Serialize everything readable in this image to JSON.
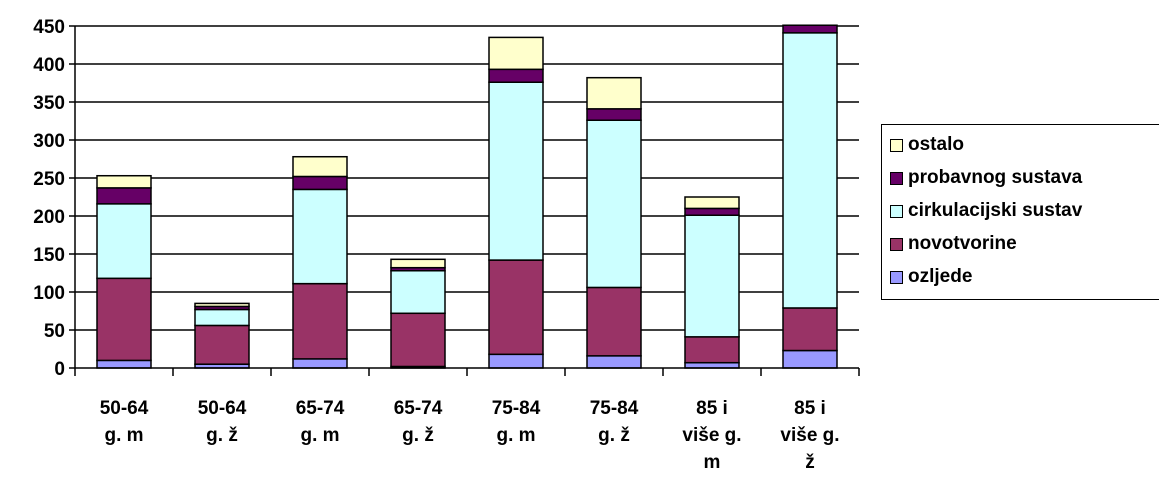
{
  "chart_data": {
    "type": "bar",
    "stacked": true,
    "categories": [
      "50-64 g. m",
      "50-64 g. ž",
      "65-74 g. m",
      "65-74 g. ž",
      "75-84 g. m",
      "75-84 g. ž",
      "85 i više g. m",
      "85 i više g. ž"
    ],
    "category_lines": [
      [
        "50-64",
        "g. m"
      ],
      [
        "50-64",
        "g. ž"
      ],
      [
        "65-74",
        "g. m"
      ],
      [
        "65-74",
        "g. ž"
      ],
      [
        "75-84",
        "g. m"
      ],
      [
        "75-84",
        "g. ž"
      ],
      [
        "85 i",
        "više g.",
        "m"
      ],
      [
        "85 i",
        "više g.",
        "ž"
      ]
    ],
    "series": [
      {
        "name": "ozljede",
        "color": "#9999FF",
        "values": [
          10,
          5,
          12,
          2,
          18,
          16,
          7,
          23
        ]
      },
      {
        "name": "novotvorine",
        "color": "#993366",
        "values": [
          108,
          51,
          99,
          70,
          124,
          90,
          34,
          56
        ]
      },
      {
        "name": "cirkulacijski sustav",
        "color": "#CCFFFF",
        "values": [
          98,
          21,
          124,
          56,
          234,
          220,
          160,
          362
        ]
      },
      {
        "name": "probavnog sustava",
        "color": "#660066",
        "values": [
          21,
          4,
          17,
          4,
          17,
          15,
          9,
          10
        ]
      },
      {
        "name": "ostalo",
        "color": "#FFFFCC",
        "values": [
          16,
          4,
          26,
          11,
          42,
          41,
          15,
          0
        ]
      }
    ],
    "ylim": [
      0,
      450
    ],
    "yticks": [
      0,
      50,
      100,
      150,
      200,
      250,
      300,
      350,
      400,
      450
    ],
    "grid": true,
    "legend_position": "right",
    "legend_order": [
      "ostalo",
      "probavnog sustava",
      "cirkulacijski sustav",
      "novotvorine",
      "ozljede"
    ],
    "title": "",
    "xlabel": "",
    "ylabel": ""
  }
}
